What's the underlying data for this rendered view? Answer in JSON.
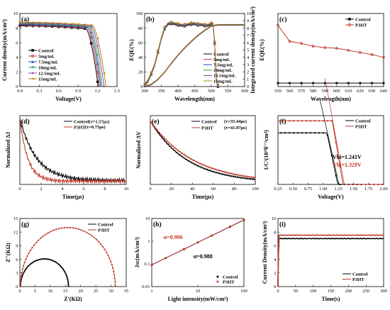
{
  "chart_data": [
    {
      "panel": "(a)",
      "type": "line",
      "xlabel": "Voltage(V)",
      "ylabel": "Current density(mA/cm²)",
      "xlim": [
        0,
        1.5
      ],
      "ylim": [
        0,
        10
      ],
      "xticks": [
        "0.0",
        "0.3",
        "0.6",
        "0.9",
        "1.2",
        "1.5"
      ],
      "yticks": [
        "0",
        "2",
        "4",
        "6",
        "8",
        "10"
      ],
      "legend_position": "left",
      "series": [
        {
          "name": "Control",
          "color": "#000000",
          "marker": "square",
          "jsc": 8.3,
          "voc": 1.21,
          "rs_knee": 1.02
        },
        {
          "name": "5mg/mL",
          "color": "#c0392b",
          "marker": "circle",
          "jsc": 8.4,
          "voc": 1.23,
          "rs_knee": 1.04
        },
        {
          "name": "7.5mg/mL",
          "color": "#1f3fbf",
          "marker": "triangle",
          "jsc": 8.5,
          "voc": 1.25,
          "rs_knee": 1.06
        },
        {
          "name": "10mg/mL",
          "color": "#27a348",
          "marker": "down",
          "jsc": 8.6,
          "voc": 1.27,
          "rs_knee": 1.08
        },
        {
          "name": "12.5mg/mL",
          "color": "#8e44ad",
          "marker": "diamond",
          "jsc": 8.7,
          "voc": 1.3,
          "rs_knee": 1.1
        },
        {
          "name": "15mg/mL",
          "color": "#b8860b",
          "marker": "left",
          "jsc": 8.8,
          "voc": 1.33,
          "rs_knee": 1.12
        }
      ]
    },
    {
      "panel": "(b)",
      "type": "line",
      "xlabel": "Wavelength(nm)",
      "ylabel": "EQE(%)",
      "ylabel_right": "Integrated current density(mA/cm²)",
      "xlim": [
        300,
        600
      ],
      "ylim": [
        0,
        100
      ],
      "ylim_right": [
        0,
        10
      ],
      "xticks": [
        "300",
        "350",
        "400",
        "450",
        "500",
        "550",
        "600"
      ],
      "yticks": [
        "0",
        "20",
        "40",
        "60",
        "80",
        "100"
      ],
      "yticks_right": [
        "0",
        "1",
        "2",
        "3",
        "4",
        "5",
        "6",
        "7",
        "8",
        "9",
        "10"
      ],
      "legend_position": "center-right",
      "eqe_x": [
        300,
        310,
        320,
        330,
        340,
        350,
        360,
        370,
        380,
        390,
        400,
        410,
        420,
        430,
        440,
        450,
        460,
        470,
        480,
        490,
        500,
        505,
        510,
        515,
        520
      ],
      "eqe_y": [
        2,
        8,
        18,
        30,
        48,
        66,
        80,
        86,
        87,
        86,
        85,
        84,
        84,
        85,
        86,
        86,
        85,
        85,
        84,
        84,
        86,
        86,
        60,
        10,
        1
      ],
      "integrated_x": [
        300,
        320,
        340,
        360,
        380,
        400,
        420,
        440,
        460,
        480,
        500,
        520,
        540,
        560,
        580,
        600
      ],
      "integrated_y": [
        0,
        0.3,
        1.0,
        2.0,
        3.2,
        4.3,
        5.3,
        6.2,
        7.0,
        7.7,
        8.3,
        8.45,
        8.45,
        8.45,
        8.45,
        8.45
      ],
      "series": [
        {
          "name": "Control",
          "color": "#000000"
        },
        {
          "name": "5mg/mL",
          "color": "#c0392b"
        },
        {
          "name": "7.5mg/mL",
          "color": "#1f3fbf"
        },
        {
          "name": "10mg/mL",
          "color": "#27a348"
        },
        {
          "name": "12.5mg/mL",
          "color": "#8e44ad"
        },
        {
          "name": "15mg/mL",
          "color": "#b8860b"
        }
      ]
    },
    {
      "panel": "(c)",
      "type": "line",
      "xlabel": "Wavelength(nm)",
      "ylabel": "EQE(%)",
      "xlim": [
        550,
        640
      ],
      "ylim": [
        -0.005,
        0.1
      ],
      "xticks": [
        "550",
        "560",
        "570",
        "580",
        "590",
        "600",
        "610",
        "620",
        "630",
        "640"
      ],
      "yticks": [
        "0.000",
        "0.025",
        "0.050",
        "0.075",
        "0.100"
      ],
      "legend_position": "top-right",
      "x": [
        550,
        560,
        570,
        580,
        590,
        600,
        610,
        620,
        630,
        640
      ],
      "series": [
        {
          "name": "Control",
          "color": "#000000",
          "marker": "square",
          "values": [
            0,
            0,
            0,
            0,
            0,
            0,
            0,
            0,
            0,
            0
          ]
        },
        {
          "name": "P3HT",
          "color": "#c0392b",
          "marker": "circle",
          "values": [
            0.083,
            0.06,
            0.057,
            0.053,
            0.051,
            0.05,
            0.047,
            0.044,
            0.041,
            0.037
          ]
        }
      ]
    },
    {
      "panel": "(d)",
      "type": "line",
      "xlabel": "Time(μs)",
      "ylabel": "Normalized ΔJ",
      "xlim": [
        0,
        10
      ],
      "ylim": [
        0,
        1
      ],
      "xticks": [
        "0",
        "2",
        "4",
        "6",
        "8",
        "10"
      ],
      "legend_position": "top-right",
      "series": [
        {
          "name": "Control(τ=1.57μs)",
          "color": "#000000",
          "tau": 1.57,
          "floor": 0.06
        },
        {
          "name": "P3HT",
          "color": "#c0392b",
          "tau": 0.75,
          "floor": 0.05
        }
      ],
      "legend_tau_label": "(τ=0.75μs)"
    },
    {
      "panel": "(e)",
      "type": "line",
      "xlabel": "Time(μs)",
      "ylabel": "Normalized ΔV",
      "xlim": [
        0,
        100
      ],
      "ylim": [
        0,
        1
      ],
      "xticks": [
        "0",
        "20",
        "40",
        "60",
        "80",
        "100"
      ],
      "legend_position": "top-right",
      "series": [
        {
          "name": "Control",
          "color": "#000000",
          "tau": 35.44
        },
        {
          "name": "P3HT",
          "color": "#c0392b",
          "tau": 41.07
        }
      ],
      "legend_tau_labels": [
        "(τ=35.44μs)",
        "(τ=41.07μs)"
      ]
    },
    {
      "panel": "(f)",
      "type": "line",
      "xlabel": "Voltage(V)",
      "ylabel": "1/C²(10¹⁸F⁻²cm⁴)",
      "xlim": [
        0.25,
        2.0
      ],
      "ylim": [
        0,
        1.6
      ],
      "xticks": [
        "0.25",
        "0.50",
        "0.75",
        "1.00",
        "1.25",
        "1.50",
        "1.75",
        "2.00"
      ],
      "legend_position": "top-right",
      "series": [
        {
          "name": "Control",
          "color": "#000000",
          "plateau": 1.2,
          "vbi": 1.241
        },
        {
          "name": "P3HT",
          "color": "#c0392b",
          "plateau": 1.48,
          "vbi": 1.329
        }
      ],
      "annotations": [
        {
          "text": "Vbi=1.241V",
          "color": "#000000"
        },
        {
          "text": "Vbi=1.329V",
          "color": "#c0392b"
        }
      ]
    },
    {
      "panel": "(g)",
      "type": "scatter",
      "xlabel": "Z'(KΩ)",
      "ylabel": "Z''(KΩ)",
      "xlim": [
        0,
        35
      ],
      "ylim": [
        0,
        15
      ],
      "xticks": [
        "0",
        "5",
        "10",
        "15",
        "20",
        "25",
        "30",
        "35"
      ],
      "yticks": [
        "0",
        "3",
        "6",
        "9",
        "12",
        "15"
      ],
      "legend_position": "top-right",
      "series": [
        {
          "name": "Control",
          "color": "#000000",
          "r": 15.8,
          "zmax": 6.1
        },
        {
          "name": "P3HT",
          "color": "#c0392b",
          "r": 31.2,
          "zmax": 13.0
        }
      ]
    },
    {
      "panel": "(h)",
      "type": "line",
      "xscale": "log",
      "yscale": "log",
      "xlabel": "Light intensity(mW/cm²)",
      "ylabel": "Jsc(mA/cm²)",
      "xlim": [
        1,
        100
      ],
      "ylim": [
        0.01,
        10
      ],
      "xticks": [
        "1",
        "10",
        "100"
      ],
      "yticks": [
        "0.01",
        "0.1",
        "1",
        "10"
      ],
      "legend_position": "bottom-right",
      "series": [
        {
          "name": "Control",
          "color": "#000000",
          "alpha": 0.988,
          "x": [
            1,
            2,
            5,
            10,
            20,
            50,
            100
          ],
          "values": [
            0.09,
            0.18,
            0.44,
            0.88,
            1.74,
            4.3,
            8.6
          ]
        },
        {
          "name": "P3HT",
          "color": "#c0392b",
          "alpha": 0.996,
          "x": [
            1,
            2,
            5,
            10,
            20,
            50,
            100
          ],
          "values": [
            0.09,
            0.18,
            0.45,
            0.89,
            1.77,
            4.4,
            8.8
          ]
        }
      ],
      "annotations": [
        {
          "text": "α=0.996",
          "color": "#c0392b"
        },
        {
          "text": "α=0.988",
          "color": "#000000"
        }
      ]
    },
    {
      "panel": "(i)",
      "type": "line",
      "xlabel": "Time(s)",
      "ylabel": "Current Density(mA/cm²)",
      "xlim": [
        0,
        300
      ],
      "ylim": [
        0,
        10
      ],
      "xticks": [
        "0",
        "50",
        "100",
        "150",
        "200",
        "250",
        "300"
      ],
      "yticks": [
        "0",
        "2",
        "4",
        "6",
        "8",
        "10"
      ],
      "legend_position": "bottom-right",
      "series": [
        {
          "name": "Control",
          "color": "#000000",
          "level": 7.05
        },
        {
          "name": "P3HT",
          "color": "#c0392b",
          "level": 7.55
        }
      ]
    }
  ]
}
